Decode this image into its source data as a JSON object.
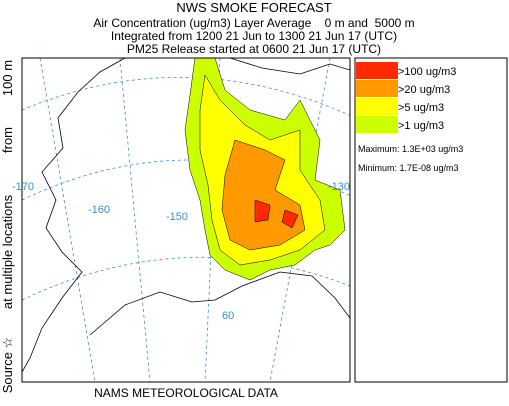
{
  "header": {
    "title": "NWS SMOKE FORECAST",
    "lines": [
      "Air Concentration (ug/m3) Layer Average    0 m and  5000 m",
      "Integrated from 1200 21 Jun to 1300 21 Jun 17 (UTC)",
      "PM25 Release started at 0600 21 Jun 17 (UTC)"
    ]
  },
  "side_label": [
    "Source ☆",
    "at multiple locations",
    "from",
    "100 m"
  ],
  "legend": {
    "items": [
      {
        "label": ">100 ug/m3",
        "color": "#ff2a00"
      },
      {
        "label": ">20 ug/m3",
        "color": "#ff9900"
      },
      {
        "label": ">5 ug/m3",
        "color": "#ffff00"
      },
      {
        "label": ">1 ug/m3",
        "color": "#ccff00"
      }
    ],
    "maximum": "Maximum: 1.3E+03 ug/m3",
    "minimum": "Minimum: 1.7E-08 ug/m3"
  },
  "map_labels": [
    "-170",
    "-160",
    "-150",
    "-130",
    "60"
  ],
  "footer": "NAMS METEOROLOGICAL DATA"
}
